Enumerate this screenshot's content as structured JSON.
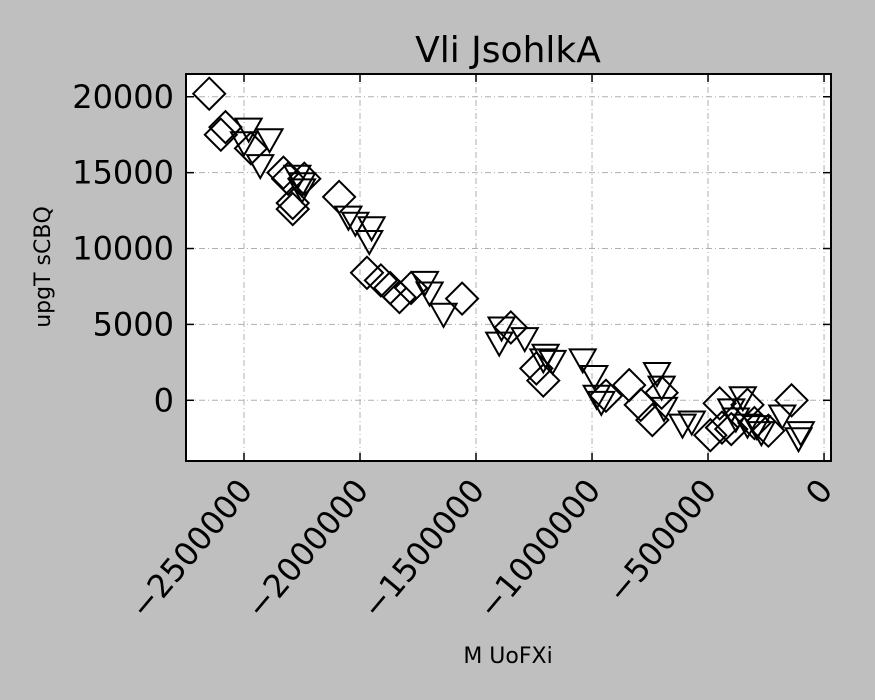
{
  "chart_data": {
    "type": "scatter",
    "title": "Vli JsohlkA",
    "xlabel": "M UoFXi",
    "ylabel": "upgT sCBQ",
    "xlim": [
      -2750000,
      30000
    ],
    "ylim": [
      -4000,
      21500
    ],
    "xticks": [
      -2500000,
      -2000000,
      -1500000,
      -1000000,
      -500000,
      0
    ],
    "xtick_labels": [
      "−2500000",
      "−2000000",
      "−1500000",
      "−1000000",
      "−500000",
      "0"
    ],
    "yticks": [
      0,
      5000,
      10000,
      15000,
      20000
    ],
    "ytick_labels": [
      "0",
      "5000",
      "10000",
      "15000",
      "20000"
    ],
    "grid": true,
    "background": "#ffffff",
    "marker_edge_color": "#000000",
    "series": [
      {
        "marker": "diamond",
        "points": [
          [
            -2650000,
            20200
          ],
          [
            -2600000,
            17500
          ],
          [
            -2580000,
            18000
          ],
          [
            -2470000,
            16600
          ],
          [
            -2330000,
            15000
          ],
          [
            -2310000,
            14600
          ],
          [
            -2290000,
            13000
          ],
          [
            -2290000,
            12600
          ],
          [
            -2240000,
            14600
          ],
          [
            -2090000,
            13400
          ],
          [
            -1970000,
            8400
          ],
          [
            -1910000,
            7900
          ],
          [
            -1870000,
            7400
          ],
          [
            -1830000,
            6800
          ],
          [
            -1780000,
            7400
          ],
          [
            -1560000,
            6700
          ],
          [
            -1350000,
            4800
          ],
          [
            -1240000,
            2100
          ],
          [
            -1210000,
            1300
          ],
          [
            -940000,
            300
          ],
          [
            -840000,
            1000
          ],
          [
            -790000,
            -300
          ],
          [
            -740000,
            -1300
          ],
          [
            -700000,
            500
          ],
          [
            -490000,
            -2300
          ],
          [
            -440000,
            -1800
          ],
          [
            -450000,
            -200
          ],
          [
            -400000,
            -1900
          ],
          [
            -330000,
            -300
          ],
          [
            -300000,
            -1500
          ],
          [
            -240000,
            -2000
          ],
          [
            -140000,
            0
          ]
        ]
      },
      {
        "marker": "triangle-down",
        "points": [
          [
            -2480000,
            17800
          ],
          [
            -2500000,
            16900
          ],
          [
            -2430000,
            15400
          ],
          [
            -2390000,
            17100
          ],
          [
            -2250000,
            14200
          ],
          [
            -2250000,
            13800
          ],
          [
            -2270000,
            14700
          ],
          [
            -2050000,
            12000
          ],
          [
            -2020000,
            11600
          ],
          [
            -1960000,
            10400
          ],
          [
            -1950000,
            11300
          ],
          [
            -1720000,
            7700
          ],
          [
            -1700000,
            7000
          ],
          [
            -1640000,
            5600
          ],
          [
            -1390000,
            4700
          ],
          [
            -1400000,
            3700
          ],
          [
            -1290000,
            4000
          ],
          [
            -1210000,
            2600
          ],
          [
            -1170000,
            2500
          ],
          [
            -1200000,
            2900
          ],
          [
            -1040000,
            2600
          ],
          [
            -990000,
            1500
          ],
          [
            -980000,
            200
          ],
          [
            -960000,
            -200
          ],
          [
            -720000,
            1700
          ],
          [
            -700000,
            800
          ],
          [
            -690000,
            -600
          ],
          [
            -610000,
            -1700
          ],
          [
            -570000,
            -1500
          ],
          [
            -400000,
            -700
          ],
          [
            -380000,
            -1300
          ],
          [
            -350000,
            100
          ],
          [
            -330000,
            -1700
          ],
          [
            -290000,
            -1800
          ],
          [
            -270000,
            -2200
          ],
          [
            -180000,
            -1100
          ],
          [
            -110000,
            -2600
          ],
          [
            -100000,
            -2200
          ]
        ]
      }
    ]
  }
}
